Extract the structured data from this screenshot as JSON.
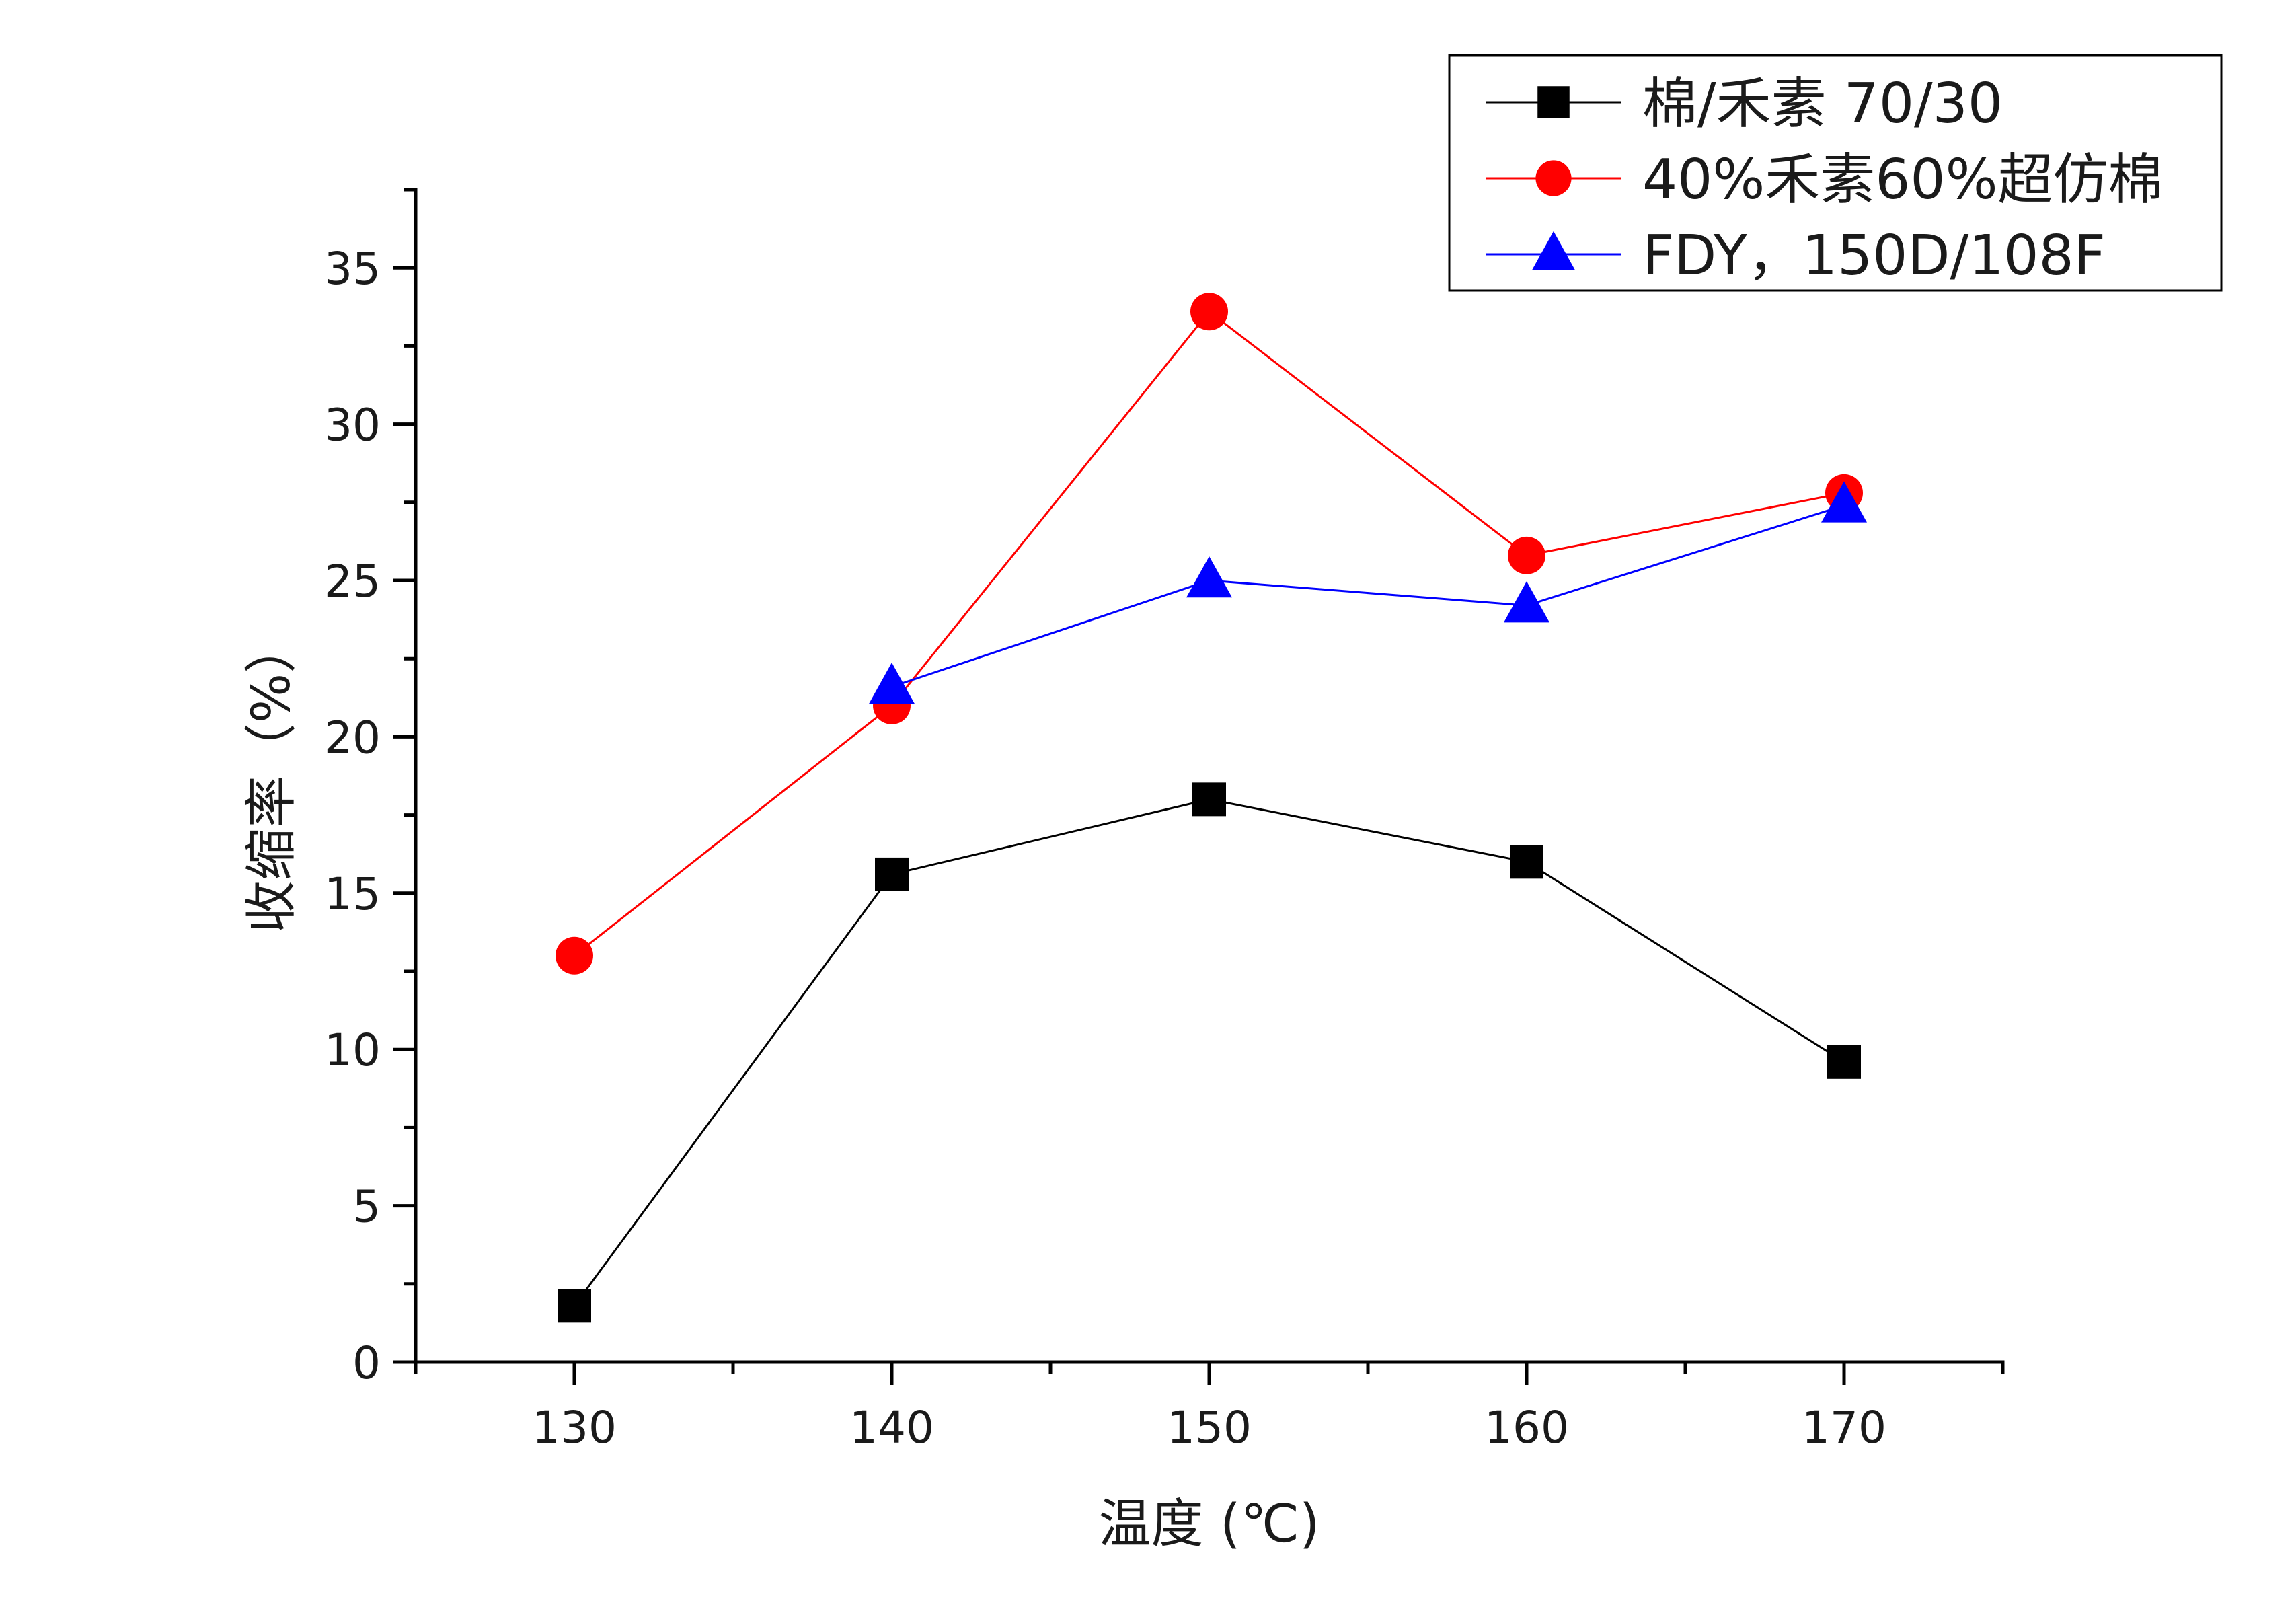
{
  "chart_data": {
    "type": "line",
    "xlabel": "温度 (℃)",
    "ylabel": "收缩率（%）",
    "x": [
      130,
      140,
      150,
      160,
      170
    ],
    "xlim": [
      125,
      175
    ],
    "ylim": [
      0,
      37.5
    ],
    "xticks": [
      130,
      140,
      150,
      160,
      170
    ],
    "yticks": [
      0,
      5,
      10,
      15,
      20,
      25,
      30,
      35
    ],
    "grid": false,
    "legend_position": "top-right",
    "series": [
      {
        "name": "棉/禾素 70/30",
        "color": "#000000",
        "marker": "square",
        "x": [
          130,
          140,
          150,
          160,
          170
        ],
        "values": [
          1.8,
          15.6,
          18.0,
          16.0,
          9.6
        ],
        "connect": [
          [
            0,
            1
          ],
          [
            1,
            2
          ],
          [
            2,
            3
          ],
          [
            3,
            4
          ]
        ]
      },
      {
        "name": "40%禾素60%超仿棉",
        "color": "#ff0000",
        "marker": "circle",
        "x": [
          130,
          140,
          150,
          160,
          170
        ],
        "values": [
          13.0,
          21.0,
          33.6,
          25.8,
          27.8
        ],
        "connect": [
          [
            0,
            1
          ],
          [
            1,
            2
          ],
          [
            2,
            3
          ],
          [
            3,
            4
          ]
        ]
      },
      {
        "name": "FDY，150D/108F",
        "color": "#0000ff",
        "marker": "triangle",
        "x": [
          140,
          150,
          160,
          170
        ],
        "values": [
          21.6,
          25.0,
          24.2,
          27.4
        ],
        "connect": [
          [
            0,
            1
          ],
          [
            1,
            2
          ],
          [
            2,
            3
          ]
        ]
      }
    ]
  }
}
